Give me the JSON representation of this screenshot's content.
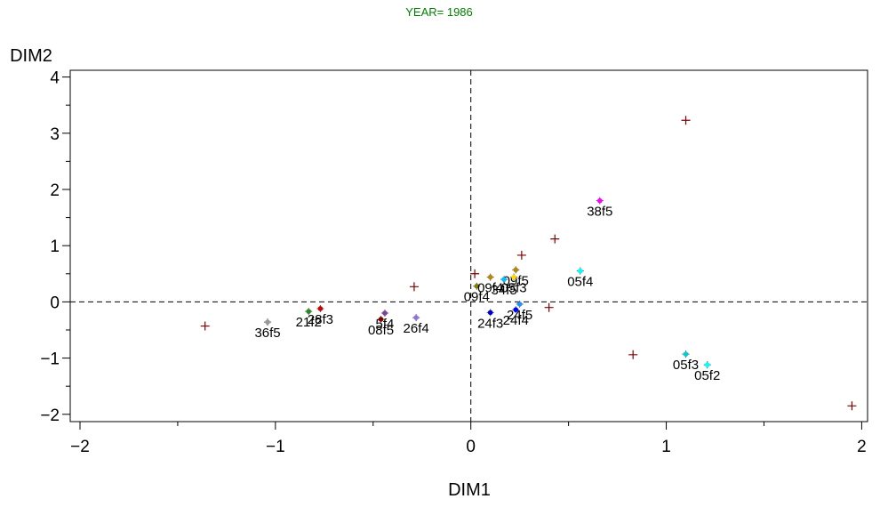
{
  "chart_data": {
    "type": "scatter",
    "title": "YEAR= 1986",
    "title_color": "#008000",
    "xlabel": "DIM1",
    "ylabel": "DIM2",
    "xlim": [
      -2.05,
      2.03
    ],
    "ylim": [
      -2.13,
      4.12
    ],
    "x_ticks": [
      -2,
      -1,
      0,
      1,
      2
    ],
    "x_tick_labels": [
      "−2",
      "−1",
      "0",
      "1",
      "2"
    ],
    "y_ticks": [
      -2,
      -1,
      0,
      1,
      2,
      3,
      4
    ],
    "y_tick_labels": [
      "−2",
      "−1",
      "0",
      "1",
      "2",
      "3",
      "4"
    ],
    "reference_lines": {
      "x": 0,
      "y": 0,
      "style": "dashed"
    },
    "grid": false,
    "labeled_points": [
      {
        "label": "36f5",
        "x": -1.04,
        "y": -0.36,
        "color": "#999999"
      },
      {
        "label": "21f2",
        "x": -0.83,
        "y": -0.17,
        "color": "#228b22"
      },
      {
        "label": "28f3",
        "x": -0.77,
        "y": -0.12,
        "color": "#cc0000"
      },
      {
        "label": "5f4",
        "x": -0.44,
        "y": -0.2,
        "color": "#7b3f9e"
      },
      {
        "label": "08f5",
        "x": -0.46,
        "y": -0.31,
        "color": "#800000"
      },
      {
        "label": "26f4",
        "x": -0.28,
        "y": -0.28,
        "color": "#9370db"
      },
      {
        "label": "09f4",
        "x": 0.03,
        "y": 0.28,
        "color": "#808000"
      },
      {
        "label": "09f4",
        "x": 0.1,
        "y": 0.44,
        "color": "#b8860b"
      },
      {
        "label": "09f5",
        "x": 0.23,
        "y": 0.57,
        "color": "#b8860b"
      },
      {
        "label": "34f5",
        "x": 0.17,
        "y": 0.4,
        "color": "#00bfff"
      },
      {
        "label": "05f3",
        "x": 0.22,
        "y": 0.44,
        "color": "#ffd700"
      },
      {
        "label": "24f3",
        "x": 0.1,
        "y": -0.19,
        "color": "#0000cd"
      },
      {
        "label": "24f4",
        "x": 0.23,
        "y": -0.14,
        "color": "#0000ff"
      },
      {
        "label": "24f5",
        "x": 0.25,
        "y": -0.04,
        "color": "#1e90ff"
      },
      {
        "label": "38f5",
        "x": 0.66,
        "y": 1.8,
        "color": "#ff00ff"
      },
      {
        "label": "05f4",
        "x": 0.56,
        "y": 0.55,
        "color": "#00ffff"
      },
      {
        "label": "05f3",
        "x": 1.1,
        "y": -0.93,
        "color": "#00ced1"
      },
      {
        "label": "05f2",
        "x": 1.21,
        "y": -1.12,
        "color": "#00ffff"
      }
    ],
    "plus_points_color": "#800000",
    "plus_points": [
      {
        "x": 1.1,
        "y": 3.23
      },
      {
        "x": 0.43,
        "y": 1.12
      },
      {
        "x": 0.26,
        "y": 0.83
      },
      {
        "x": -0.29,
        "y": 0.27
      },
      {
        "x": 0.02,
        "y": 0.5
      },
      {
        "x": 0.4,
        "y": -0.1
      },
      {
        "x": -1.36,
        "y": -0.43
      },
      {
        "x": 0.83,
        "y": -0.94
      },
      {
        "x": 1.95,
        "y": -1.85
      }
    ]
  }
}
